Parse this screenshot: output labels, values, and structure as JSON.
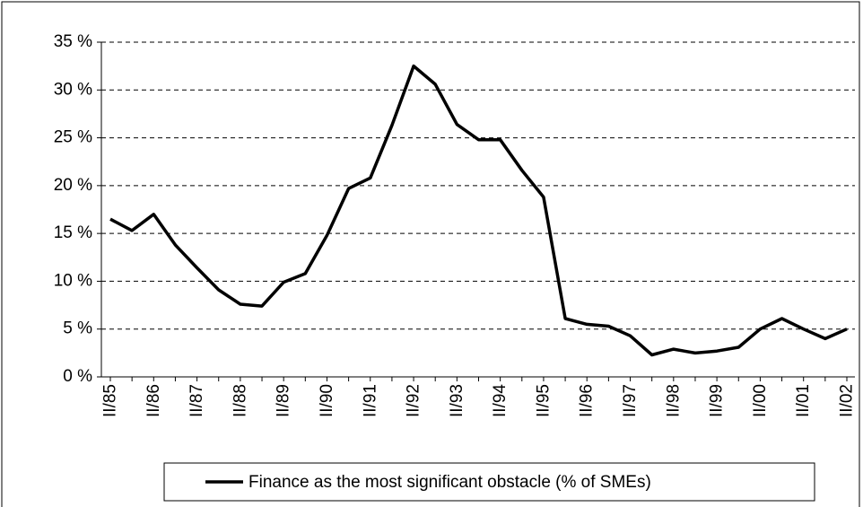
{
  "chart_data": {
    "type": "line",
    "categories": [
      "II/85",
      null,
      "II/86",
      null,
      "II/87",
      null,
      "II/88",
      null,
      "II/89",
      null,
      "II/90",
      null,
      "II/91",
      null,
      "II/92",
      null,
      "II/93",
      null,
      "II/94",
      null,
      "II/95",
      null,
      "II/96",
      null,
      "II/97",
      null,
      "II/98",
      null,
      "II/99",
      null,
      "II/00",
      null,
      "II/01",
      null,
      "II/02"
    ],
    "series": [
      {
        "name": "Finance as the most significant obstacle (% of SMEs)",
        "color": "#000000",
        "values": [
          16.5,
          15.3,
          17.0,
          13.8,
          11.4,
          9.1,
          7.6,
          7.4,
          9.9,
          10.8,
          14.8,
          19.7,
          20.8,
          26.3,
          32.5,
          30.6,
          26.4,
          24.8,
          24.8,
          21.6,
          18.8,
          6.1,
          5.5,
          5.3,
          4.3,
          2.3,
          2.9,
          2.5,
          2.7,
          3.1,
          5.0,
          6.1,
          5.0,
          4.0,
          5.0
        ]
      }
    ],
    "ylim": [
      0,
      35
    ],
    "yticks": [
      {
        "value": 0,
        "label": "0 %"
      },
      {
        "value": 5,
        "label": "5 %"
      },
      {
        "value": 10,
        "label": "10 %"
      },
      {
        "value": 15,
        "label": "15 %"
      },
      {
        "value": 20,
        "label": "20 %"
      },
      {
        "value": 25,
        "label": "25 %"
      },
      {
        "value": 30,
        "label": "30 %"
      },
      {
        "value": 35,
        "label": "35 %"
      }
    ],
    "grid": true,
    "legend": "bottom"
  }
}
